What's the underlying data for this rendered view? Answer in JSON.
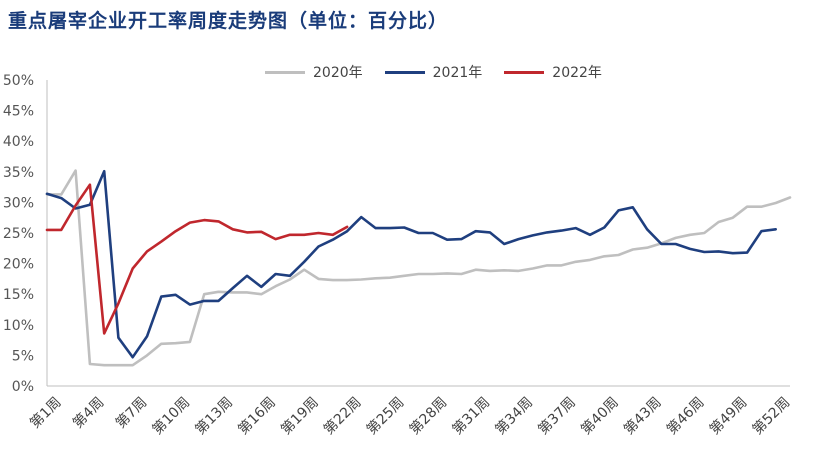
{
  "page": {
    "title": "重点屠宰企业开工率周度走势图（单位：百分比）"
  },
  "colors": {
    "s2020": "#bfbfbf",
    "s2021": "#1f3f7f",
    "s2022": "#c0272d",
    "title": "#1a3c7a"
  },
  "chart_data": {
    "type": "line",
    "title": "重点屠宰企业开工率周度走势图（单位：百分比）",
    "xlabel": "",
    "ylabel": "",
    "ylim": [
      0,
      50
    ],
    "yticks": [
      "0%",
      "5%",
      "10%",
      "15%",
      "20%",
      "25%",
      "30%",
      "35%",
      "40%",
      "45%",
      "50%"
    ],
    "categories": [
      "第1周",
      "第2周",
      "第3周",
      "第4周",
      "第5周",
      "第6周",
      "第7周",
      "第8周",
      "第9周",
      "第10周",
      "第11周",
      "第12周",
      "第13周",
      "第14周",
      "第15周",
      "第16周",
      "第17周",
      "第18周",
      "第19周",
      "第20周",
      "第21周",
      "第22周",
      "第23周",
      "第24周",
      "第25周",
      "第26周",
      "第27周",
      "第28周",
      "第29周",
      "第30周",
      "第31周",
      "第32周",
      "第33周",
      "第34周",
      "第35周",
      "第36周",
      "第37周",
      "第38周",
      "第39周",
      "第40周",
      "第41周",
      "第42周",
      "第43周",
      "第44周",
      "第45周",
      "第46周",
      "第47周",
      "第48周",
      "第49周",
      "第50周",
      "第51周",
      "第52周",
      "第53周"
    ],
    "xtick_labels": [
      "第1周",
      "第4周",
      "第7周",
      "第10周",
      "第13周",
      "第16周",
      "第19周",
      "第22周",
      "第25周",
      "第28周",
      "第31周",
      "第34周",
      "第37周",
      "第40周",
      "第43周",
      "第46周",
      "第49周",
      "第52周"
    ],
    "legend_position": "top",
    "grid": false,
    "series": [
      {
        "name": "2020年",
        "values": [
          31.3,
          31.3,
          35.2,
          3.6,
          3.4,
          3.4,
          3.4,
          5.0,
          6.9,
          7.0,
          7.2,
          15.0,
          15.4,
          15.3,
          15.3,
          15.0,
          16.3,
          17.4,
          19.0,
          17.5,
          17.3,
          17.3,
          17.4,
          17.6,
          17.7,
          18.0,
          18.3,
          18.3,
          18.4,
          18.3,
          19.0,
          18.8,
          18.9,
          18.8,
          19.2,
          19.7,
          19.7,
          20.3,
          20.6,
          21.2,
          21.4,
          22.3,
          22.6,
          23.3,
          24.2,
          24.7,
          25.0,
          26.8,
          27.5,
          29.3,
          29.3,
          29.9,
          30.8
        ]
      },
      {
        "name": "2021年",
        "values": [
          31.4,
          30.7,
          29.0,
          29.6,
          35.1,
          7.9,
          4.7,
          8.1,
          14.6,
          14.9,
          13.3,
          13.9,
          13.9,
          16.0,
          18.0,
          16.2,
          18.3,
          18.0,
          20.3,
          22.8,
          23.9,
          25.3,
          27.6,
          25.8,
          25.8,
          25.9,
          25.0,
          25.0,
          23.9,
          24.0,
          25.3,
          25.1,
          23.2,
          24.0,
          24.6,
          25.1,
          25.4,
          25.8,
          24.7,
          25.9,
          28.7,
          29.2,
          25.6,
          23.2,
          23.2,
          22.4,
          21.9,
          22.0,
          21.7,
          21.8,
          25.3,
          25.6,
          null
        ]
      },
      {
        "name": "2022年",
        "values": [
          25.5,
          25.5,
          29.5,
          32.9,
          8.6,
          13.5,
          19.2,
          22.0,
          23.6,
          25.3,
          26.7,
          27.1,
          26.9,
          25.6,
          25.1,
          25.2,
          24.0,
          24.7,
          24.7,
          25.0,
          24.7,
          26.0,
          null,
          null,
          null,
          null,
          null,
          null,
          null,
          null,
          null,
          null,
          null,
          null,
          null,
          null,
          null,
          null,
          null,
          null,
          null,
          null,
          null,
          null,
          null,
          null,
          null,
          null,
          null,
          null,
          null,
          null,
          null
        ]
      }
    ]
  }
}
